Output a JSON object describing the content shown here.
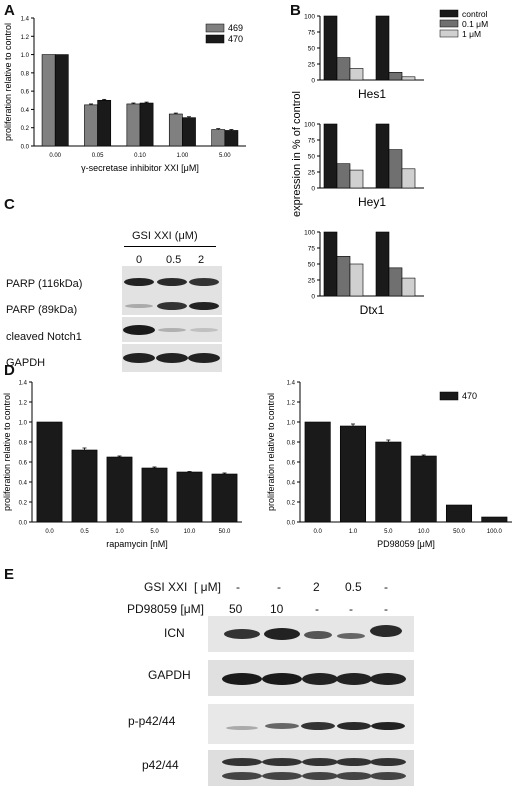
{
  "panels": {
    "A": {
      "letter": "A",
      "chart_data": {
        "type": "bar",
        "title": "",
        "xlabel": "γ-secretase inhibitor XXI [μM]",
        "ylabel": "proliferation relative to control",
        "ylim": [
          0,
          1.4
        ],
        "yticks": [
          "0.0",
          "0.2",
          "0.4",
          "0.6",
          "0.8",
          "1.0",
          "1.2",
          "1.4"
        ],
        "categories": [
          "0.00",
          "0.05",
          "0.10",
          "1.00",
          "5.00"
        ],
        "series": [
          {
            "name": "469",
            "color": "#808080",
            "values": [
              1.0,
              0.45,
              0.46,
              0.35,
              0.18
            ],
            "err": [
              0,
              0.01,
              0.01,
              0.01,
              0.01
            ]
          },
          {
            "name": "470",
            "color": "#1a1a1a",
            "values": [
              1.0,
              0.5,
              0.47,
              0.31,
              0.17
            ],
            "err": [
              0,
              0.01,
              0.01,
              0.01,
              0.01
            ]
          }
        ],
        "legend": "top-right"
      }
    },
    "B": {
      "letter": "B",
      "ylabel": "expression in % of control",
      "legend": [
        {
          "name": "control",
          "color": "#1a1a1a"
        },
        {
          "name": "0.1 μM",
          "color": "#707070"
        },
        {
          "name": "1 μM",
          "color": "#d0d0d0"
        }
      ],
      "chart_data": [
        {
          "type": "bar",
          "title": "Hes1",
          "yticks": [
            "0",
            "25",
            "50",
            "75",
            "100"
          ],
          "ylim": [
            0,
            100
          ],
          "groups": [
            [
              100,
              35,
              18
            ],
            [
              100,
              12,
              5
            ]
          ]
        },
        {
          "type": "bar",
          "title": "Hey1",
          "yticks": [
            "0",
            "25",
            "50",
            "75",
            "100"
          ],
          "ylim": [
            0,
            100
          ],
          "groups": [
            [
              100,
              38,
              28
            ],
            [
              100,
              60,
              30
            ]
          ]
        },
        {
          "type": "bar",
          "title": "Dtx1",
          "yticks": [
            "0",
            "25",
            "50",
            "75",
            "100"
          ],
          "ylim": [
            0,
            100
          ],
          "groups": [
            [
              100,
              62,
              50
            ],
            [
              100,
              44,
              28
            ]
          ]
        }
      ]
    },
    "C": {
      "letter": "C",
      "header": "GSI XXI (μM)",
      "lanes": [
        "0",
        "0.5",
        "2"
      ],
      "rows": [
        "PARP (116kDa)",
        "PARP (89kDa)",
        "cleaved Notch1",
        "GAPDH"
      ]
    },
    "D": {
      "letter": "D",
      "chart_data": [
        {
          "type": "bar",
          "title": "",
          "xlabel": "rapamycin [nM]",
          "ylabel": "proliferation relative to control",
          "ylim": [
            0,
            1.4
          ],
          "yticks": [
            "0.0",
            "0.2",
            "0.4",
            "0.6",
            "0.8",
            "1.0",
            "1.2",
            "1.4"
          ],
          "categories": [
            "0.0",
            "0.5",
            "1.0",
            "5.0",
            "10.0",
            "50.0"
          ],
          "values": [
            1.0,
            0.72,
            0.65,
            0.54,
            0.5,
            0.48
          ],
          "err": [
            0,
            0.02,
            0.01,
            0.01,
            0.005,
            0.01
          ]
        },
        {
          "type": "bar",
          "title": "",
          "xlabel": "PD98059 [μM]",
          "ylabel": "proliferation relative to control",
          "ylim": [
            0,
            1.4
          ],
          "yticks": [
            "0.0",
            "0.2",
            "0.4",
            "0.6",
            "0.8",
            "1.0",
            "1.2",
            "1.4"
          ],
          "categories": [
            "0.0",
            "1.0",
            "5.0",
            "10.0",
            "50.0",
            "100.0"
          ],
          "series": [
            {
              "name": "470",
              "values": [
                1.0,
                0.96,
                0.8,
                0.66,
                0.17,
                0.05
              ],
              "err": [
                0,
                0.02,
                0.02,
                0.01,
                0,
                0
              ]
            }
          ],
          "legend": "top-right"
        }
      ]
    },
    "E": {
      "letter": "E",
      "gsi_label": "GSI XXI",
      "gsi_unit": "[ μM]",
      "pd_label": "PD98059 [μM]",
      "gsi_values": [
        "-",
        "-",
        "2",
        "0.5",
        "-"
      ],
      "pd_values": [
        "50",
        "10",
        "-",
        "-",
        "-"
      ],
      "rows": [
        "ICN",
        "GAPDH",
        "p-p42/44",
        "p42/44"
      ]
    }
  }
}
